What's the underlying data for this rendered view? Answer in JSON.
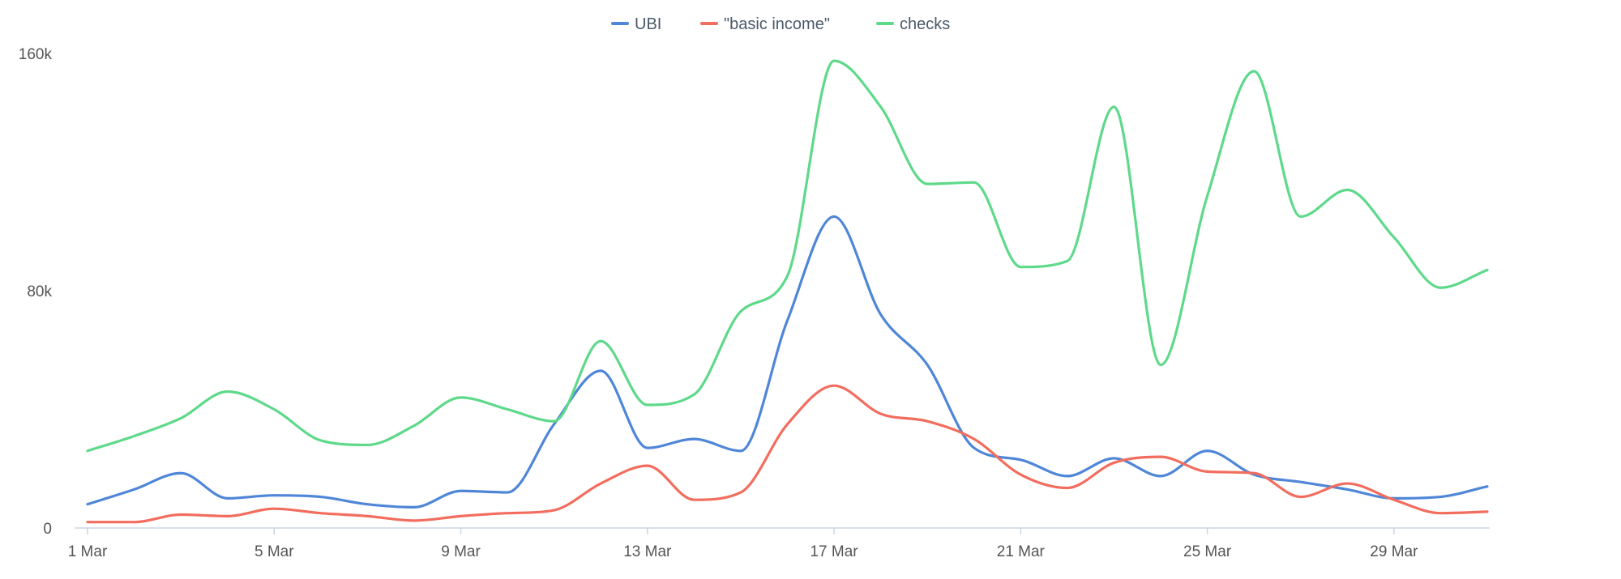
{
  "chart_data": {
    "type": "line",
    "title": "",
    "xlabel": "",
    "ylabel": "",
    "ylim": [
      0,
      160000
    ],
    "y_ticks": [
      {
        "value": 0,
        "label": "0"
      },
      {
        "value": 80000,
        "label": "80k"
      },
      {
        "value": 160000,
        "label": "160k"
      }
    ],
    "x_ticks": [
      {
        "day": 1,
        "label": "1 Mar"
      },
      {
        "day": 5,
        "label": "5 Mar"
      },
      {
        "day": 9,
        "label": "9 Mar"
      },
      {
        "day": 13,
        "label": "13 Mar"
      },
      {
        "day": 17,
        "label": "17 Mar"
      },
      {
        "day": 21,
        "label": "21 Mar"
      },
      {
        "day": 25,
        "label": "25 Mar"
      },
      {
        "day": 29,
        "label": "29 Mar"
      }
    ],
    "x": [
      1,
      2,
      3,
      4,
      5,
      6,
      7,
      8,
      9,
      10,
      11,
      12,
      13,
      14,
      15,
      16,
      17,
      18,
      19,
      20,
      21,
      22,
      23,
      24,
      25,
      26,
      27,
      28,
      29,
      30,
      31
    ],
    "grid": false,
    "legend_position": "top-center",
    "series": [
      {
        "name": "UBI",
        "color": "#4f86d8",
        "values": [
          8000,
          13000,
          18500,
          10000,
          11000,
          10500,
          8000,
          7000,
          12500,
          12000,
          35000,
          53000,
          27000,
          30000,
          26000,
          70000,
          105000,
          72000,
          55000,
          27000,
          23000,
          17500,
          23500,
          17500,
          26000,
          18000,
          15500,
          13000,
          10000,
          10500,
          14000
        ]
      },
      {
        "name": "\"basic income\"",
        "color": "#f26d5e",
        "values": [
          2000,
          2000,
          4500,
          4000,
          6500,
          5000,
          4000,
          2500,
          4000,
          5000,
          6000,
          15000,
          21000,
          9500,
          12000,
          35000,
          48000,
          38500,
          36000,
          30000,
          18000,
          13500,
          22000,
          24000,
          19000,
          18500,
          10500,
          15000,
          9500,
          5000,
          5500
        ]
      },
      {
        "name": "checks",
        "color": "#5ed98a",
        "values": [
          26000,
          31000,
          37000,
          46000,
          40000,
          29500,
          28000,
          34500,
          44000,
          40000,
          36000,
          63000,
          41500,
          45000,
          73000,
          85000,
          157500,
          142000,
          116000,
          116500,
          88000,
          90000,
          142000,
          55000,
          112000,
          154000,
          105000,
          114000,
          98000,
          81000,
          87000
        ]
      }
    ]
  }
}
